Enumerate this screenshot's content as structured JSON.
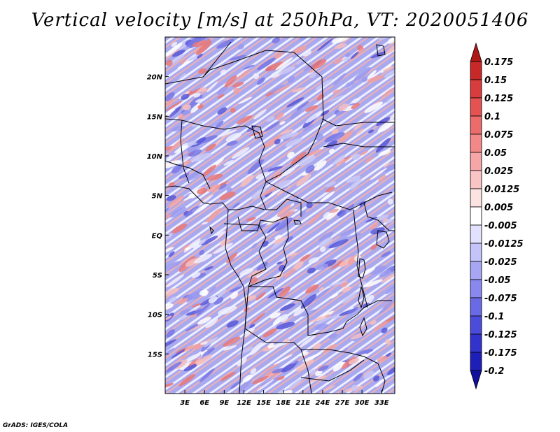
{
  "title": "Vertical velocity [m/s] at 250hPa, VT: 2020051406",
  "credit": "GrADS: IGES/COLA",
  "map": {
    "lon_range": [
      0,
      35
    ],
    "lat_range": [
      -20,
      25
    ],
    "lat_ticks": [
      {
        "value": 20,
        "label": "20N"
      },
      {
        "value": 15,
        "label": "15N"
      },
      {
        "value": 10,
        "label": "10N"
      },
      {
        "value": 5,
        "label": "5N"
      },
      {
        "value": 0,
        "label": "EQ"
      },
      {
        "value": -5,
        "label": "5S"
      },
      {
        "value": -10,
        "label": "10S"
      },
      {
        "value": -15,
        "label": "15S"
      }
    ],
    "lon_ticks": [
      {
        "value": 3,
        "label": "3E"
      },
      {
        "value": 6,
        "label": "6E"
      },
      {
        "value": 9,
        "label": "9E"
      },
      {
        "value": 12,
        "label": "12E"
      },
      {
        "value": 15,
        "label": "15E"
      },
      {
        "value": 18,
        "label": "18E"
      },
      {
        "value": 21,
        "label": "21E"
      },
      {
        "value": 24,
        "label": "24E"
      },
      {
        "value": 27,
        "label": "27E"
      },
      {
        "value": 30,
        "label": "30E"
      },
      {
        "value": 33,
        "label": "33E"
      }
    ]
  },
  "colorbar": {
    "levels": [
      "0.175",
      "0.15",
      "0.125",
      "0.1",
      "0.075",
      "0.05",
      "0.025",
      "0.0125",
      "0.005",
      "-0.005",
      "-0.0125",
      "-0.025",
      "-0.05",
      "-0.075",
      "-0.1",
      "-0.125",
      "-0.175",
      "-0.2"
    ],
    "colors": [
      "#b01818",
      "#c82828",
      "#d83c3c",
      "#e45252",
      "#ec6c6c",
      "#f28888",
      "#f6a6a6",
      "#fac4c4",
      "#fde2e2",
      "#ffffff",
      "#e2e2fe",
      "#c4c4fa",
      "#a6a6f4",
      "#8888ee",
      "#6a6ae6",
      "#4c4cdc",
      "#3232cc",
      "#1e1eb8",
      "#10109c"
    ]
  }
}
